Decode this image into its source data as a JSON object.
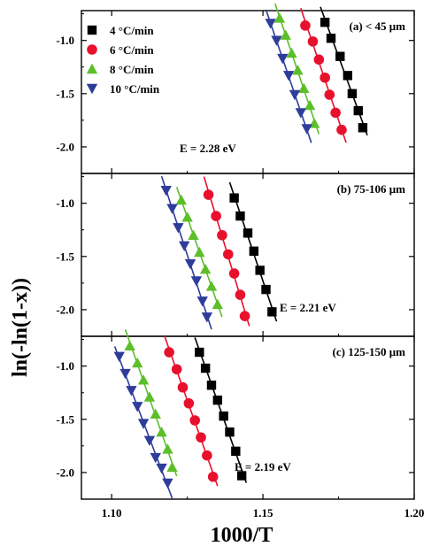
{
  "chart_data": {
    "type": "scatter",
    "xlabel": "1000/T",
    "ylabel": "ln(-ln(1-x))",
    "xlim": [
      1.09,
      1.2
    ],
    "ylim": [
      -2.25,
      -0.72
    ],
    "xticks": [
      "1.10",
      "1.15",
      "1.20"
    ],
    "yticks": [
      "-1.0",
      "-1.5",
      "-2.0"
    ],
    "legend": {
      "placement": "top-left of panel (a)",
      "entries": [
        {
          "label": "4 °C/min",
          "color": "#000000",
          "marker": "square"
        },
        {
          "label": "6 °C/min",
          "color": "#e8112d",
          "marker": "circle"
        },
        {
          "label": "8 °C/min",
          "color": "#5cbf2a",
          "marker": "triangle-up"
        },
        {
          "label": "10 °C/min",
          "color": "#2e3d9a",
          "marker": "triangle-down"
        }
      ]
    },
    "panels": [
      {
        "label": "(a) < 45 μm",
        "annotation": "E = 2.28 eV",
        "series": [
          {
            "name": "4 °C/min",
            "points": [
              [
                1.1705,
                -0.83
              ],
              [
                1.1725,
                -0.98
              ],
              [
                1.1755,
                -1.15
              ],
              [
                1.178,
                -1.33
              ],
              [
                1.1795,
                -1.5
              ],
              [
                1.1815,
                -1.66
              ],
              [
                1.183,
                -1.82
              ]
            ]
          },
          {
            "name": "6 °C/min",
            "points": [
              [
                1.164,
                -0.86
              ],
              [
                1.1665,
                -1.01
              ],
              [
                1.1685,
                -1.18
              ],
              [
                1.1705,
                -1.35
              ],
              [
                1.172,
                -1.51
              ],
              [
                1.174,
                -1.68
              ],
              [
                1.176,
                -1.84
              ]
            ]
          },
          {
            "name": "8 °C/min",
            "points": [
              [
                1.1555,
                -0.79
              ],
              [
                1.1575,
                -0.95
              ],
              [
                1.1595,
                -1.12
              ],
              [
                1.1615,
                -1.28
              ],
              [
                1.1635,
                -1.45
              ],
              [
                1.1655,
                -1.61
              ],
              [
                1.167,
                -1.78
              ]
            ]
          },
          {
            "name": "10 °C/min",
            "points": [
              [
                1.1525,
                -0.84
              ],
              [
                1.1545,
                -1.0
              ],
              [
                1.1565,
                -1.17
              ],
              [
                1.1585,
                -1.33
              ],
              [
                1.1605,
                -1.51
              ],
              [
                1.1625,
                -1.68
              ],
              [
                1.1645,
                -1.83
              ]
            ]
          }
        ]
      },
      {
        "label": "(b) 75-106 μm",
        "annotation": "E = 2.21 eV",
        "series": [
          {
            "name": "4 °C/min",
            "points": [
              [
                1.1405,
                -0.95
              ],
              [
                1.1425,
                -1.12
              ],
              [
                1.145,
                -1.28
              ],
              [
                1.147,
                -1.45
              ],
              [
                1.149,
                -1.63
              ],
              [
                1.151,
                -1.81
              ],
              [
                1.153,
                -2.02
              ]
            ]
          },
          {
            "name": "6 °C/min",
            "points": [
              [
                1.132,
                -0.92
              ],
              [
                1.1345,
                -1.12
              ],
              [
                1.1365,
                -1.3
              ],
              [
                1.1385,
                -1.48
              ],
              [
                1.1405,
                -1.66
              ],
              [
                1.1425,
                -1.86
              ],
              [
                1.144,
                -2.06
              ]
            ]
          },
          {
            "name": "8 °C/min",
            "points": [
              [
                1.123,
                -0.97
              ],
              [
                1.125,
                -1.13
              ],
              [
                1.127,
                -1.3
              ],
              [
                1.129,
                -1.46
              ],
              [
                1.131,
                -1.62
              ],
              [
                1.133,
                -1.78
              ],
              [
                1.135,
                -1.95
              ]
            ]
          },
          {
            "name": "10 °C/min",
            "points": [
              [
                1.118,
                -0.88
              ],
              [
                1.12,
                -1.05
              ],
              [
                1.122,
                -1.23
              ],
              [
                1.124,
                -1.4
              ],
              [
                1.126,
                -1.57
              ],
              [
                1.128,
                -1.73
              ],
              [
                1.13,
                -1.92
              ],
              [
                1.1315,
                -2.07
              ]
            ]
          }
        ]
      },
      {
        "label": "(c) 125-150 μm",
        "annotation": "E = 2.19 eV",
        "series": [
          {
            "name": "4 °C/min",
            "points": [
              [
                1.129,
                -0.87
              ],
              [
                1.131,
                -1.02
              ],
              [
                1.133,
                -1.18
              ],
              [
                1.135,
                -1.32
              ],
              [
                1.137,
                -1.47
              ],
              [
                1.139,
                -1.62
              ],
              [
                1.141,
                -1.8
              ],
              [
                1.143,
                -2.03
              ]
            ]
          },
          {
            "name": "6 °C/min",
            "points": [
              [
                1.119,
                -0.87
              ],
              [
                1.1215,
                -1.03
              ],
              [
                1.1235,
                -1.2
              ],
              [
                1.1255,
                -1.35
              ],
              [
                1.1275,
                -1.51
              ],
              [
                1.1295,
                -1.67
              ],
              [
                1.1315,
                -1.84
              ],
              [
                1.1335,
                -2.04
              ]
            ]
          },
          {
            "name": "8 °C/min",
            "points": [
              [
                1.106,
                -0.81
              ],
              [
                1.1085,
                -0.97
              ],
              [
                1.1105,
                -1.13
              ],
              [
                1.1125,
                -1.29
              ],
              [
                1.1145,
                -1.45
              ],
              [
                1.1165,
                -1.62
              ],
              [
                1.1185,
                -1.78
              ],
              [
                1.12,
                -1.95
              ]
            ]
          },
          {
            "name": "10 °C/min",
            "points": [
              [
                1.1025,
                -0.91
              ],
              [
                1.1045,
                -1.07
              ],
              [
                1.1065,
                -1.23
              ],
              [
                1.1085,
                -1.38
              ],
              [
                1.1105,
                -1.54
              ],
              [
                1.1125,
                -1.7
              ],
              [
                1.1145,
                -1.86
              ],
              [
                1.1165,
                -1.96
              ],
              [
                1.1185,
                -2.1
              ]
            ]
          }
        ]
      }
    ]
  }
}
